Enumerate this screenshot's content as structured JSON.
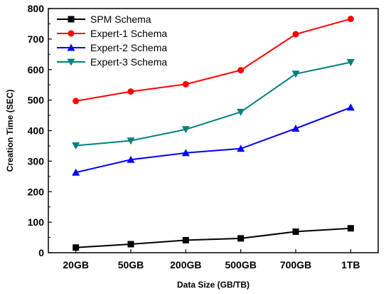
{
  "chart_data": {
    "type": "line",
    "categories": [
      "20GB",
      "50GB",
      "200GB",
      "500GB",
      "700GB",
      "1TB"
    ],
    "xlabel": "Data Size (GB/TB)",
    "ylabel": "Creation Time (SEC)",
    "ylim": [
      0,
      800
    ],
    "yticks": [
      "0",
      "100",
      "200",
      "300",
      "400",
      "500",
      "600",
      "700",
      "800"
    ],
    "legend_position": "top-left",
    "grid": false,
    "series": [
      {
        "name": "SPM Schema",
        "color": "#000000",
        "marker": "square",
        "values": [
          17,
          28,
          41,
          47,
          69,
          80
        ]
      },
      {
        "name": "Expert-1 Schema",
        "color": "#ff0000",
        "marker": "circle",
        "values": [
          497,
          528,
          552,
          598,
          716,
          766
        ]
      },
      {
        "name": "Expert-2 Schema",
        "color": "#0000ff",
        "marker": "triangle-up",
        "values": [
          263,
          305,
          327,
          341,
          407,
          476
        ]
      },
      {
        "name": "Expert-3 Schema",
        "color": "#008080",
        "marker": "triangle-down",
        "values": [
          351,
          367,
          404,
          461,
          586,
          624
        ]
      }
    ]
  }
}
